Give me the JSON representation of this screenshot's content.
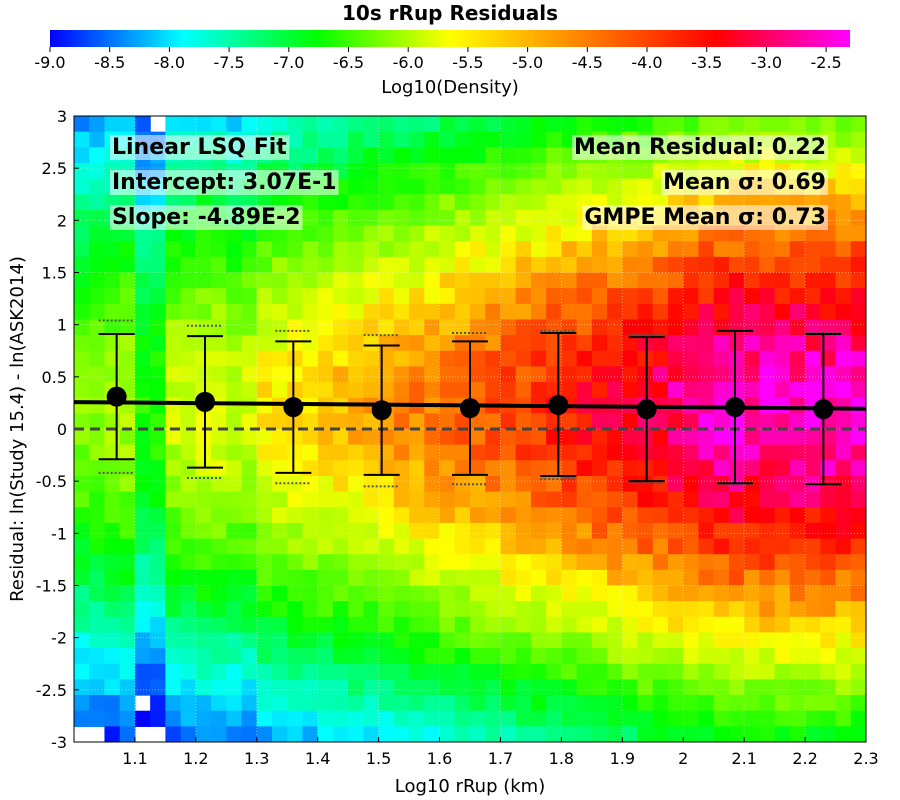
{
  "chart_data": {
    "type": "heatmap",
    "title": "10s rRup Residuals",
    "xlabel": "Log10 rRup (km)",
    "ylabel": "Residual: ln(Study 15.4) - ln(ASK2014)",
    "xlim": [
      1.0,
      2.3
    ],
    "ylim": [
      -3,
      3
    ],
    "x_ticks": [
      "1.1",
      "1.2",
      "1.3",
      "1.4",
      "1.5",
      "1.6",
      "1.7",
      "1.8",
      "1.9",
      "2",
      "2.1",
      "2.2",
      "2.3"
    ],
    "y_ticks": [
      "-3",
      "-2.5",
      "-2",
      "-1.5",
      "-1",
      "-0.5",
      "0",
      "0.5",
      "1",
      "1.5",
      "2",
      "2.5",
      "3"
    ],
    "grid": true,
    "colorbar": {
      "label": "Log10(Density)",
      "range": [
        -9.0,
        -2.3
      ],
      "ticks": [
        "-9.0",
        "-8.5",
        "-8.0",
        "-7.5",
        "-7.0",
        "-6.5",
        "-6.0",
        "-5.5",
        "-5.0",
        "-4.5",
        "-4.0",
        "-3.5",
        "-3.0",
        "-2.5"
      ],
      "colors": [
        "#0000ff",
        "#00ffff",
        "#00ff00",
        "#ffff00",
        "#ff8000",
        "#ff0000",
        "#ff00ff"
      ],
      "placement": "top"
    },
    "bins": [
      {
        "x": 1.07,
        "mean": 0.31,
        "upper": 0.91,
        "lower": -0.29,
        "upper_gmpe": 1.04,
        "lower_gmpe": -0.42
      },
      {
        "x": 1.215,
        "mean": 0.26,
        "upper": 0.89,
        "lower": -0.37,
        "upper_gmpe": 0.99,
        "lower_gmpe": -0.47
      },
      {
        "x": 1.36,
        "mean": 0.21,
        "upper": 0.84,
        "lower": -0.42,
        "upper_gmpe": 0.94,
        "lower_gmpe": -0.52
      },
      {
        "x": 1.505,
        "mean": 0.18,
        "upper": 0.8,
        "lower": -0.44,
        "upper_gmpe": 0.9,
        "lower_gmpe": -0.55
      },
      {
        "x": 1.65,
        "mean": 0.2,
        "upper": 0.84,
        "lower": -0.44,
        "upper_gmpe": 0.92,
        "lower_gmpe": -0.53
      },
      {
        "x": 1.795,
        "mean": 0.23,
        "upper": 0.92,
        "lower": -0.45,
        "upper_gmpe": 0.94,
        "lower_gmpe": -0.48
      },
      {
        "x": 1.94,
        "mean": 0.19,
        "upper": 0.88,
        "lower": -0.5,
        "upper_gmpe": 0.91,
        "lower_gmpe": -0.52
      },
      {
        "x": 2.085,
        "mean": 0.21,
        "upper": 0.94,
        "lower": -0.52,
        "upper_gmpe": 0.95,
        "lower_gmpe": -0.53
      },
      {
        "x": 2.23,
        "mean": 0.19,
        "upper": 0.91,
        "lower": -0.53,
        "upper_gmpe": 0.92,
        "lower_gmpe": -0.53
      }
    ],
    "fit_line": {
      "intercept": 0.307,
      "slope": -0.0489
    },
    "zero_line": 0,
    "annotations": {
      "fit_title": "Linear LSQ Fit",
      "intercept": "Intercept: 3.07E-1",
      "slope": "Slope: -4.89E-2",
      "mean_residual": "Mean Residual: 0.22",
      "mean_sigma": "Mean σ: 0.69",
      "gmpe_sigma": "GMPE Mean σ: 0.73"
    }
  }
}
